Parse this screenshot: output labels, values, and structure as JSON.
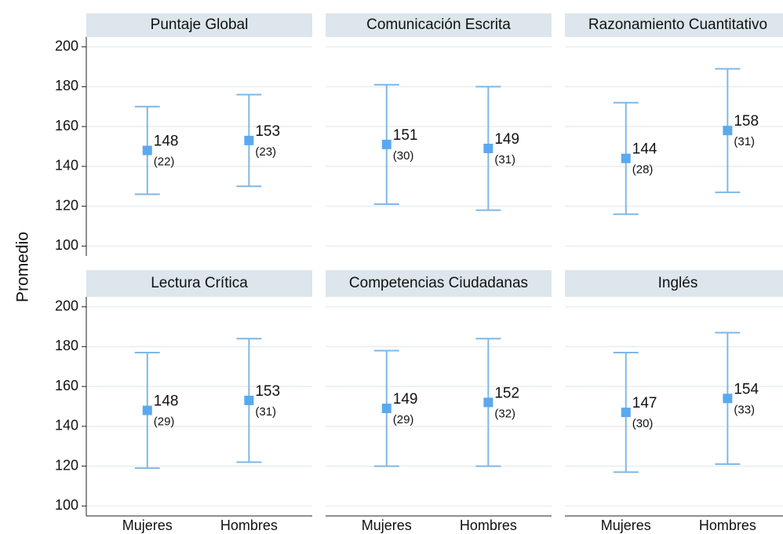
{
  "ylabel": "Promedio",
  "chart_data": [
    {
      "type": "errorbar",
      "title": "Puntaje Global",
      "categories": [
        "Mujeres",
        "Hombres"
      ],
      "values": [
        148,
        153
      ],
      "errors": [
        22,
        23
      ],
      "error_labels": [
        "(22)",
        "(23)"
      ],
      "ylim": [
        95,
        205
      ],
      "yticks": [
        100,
        120,
        140,
        160,
        180,
        200
      ],
      "grid": true,
      "color": "#5aa9f0",
      "bar_color": "#7fb8e6"
    },
    {
      "type": "errorbar",
      "title": "Comunicación Escrita",
      "categories": [
        "Mujeres",
        "Hombres"
      ],
      "values": [
        151,
        149
      ],
      "errors": [
        30,
        31
      ],
      "error_labels": [
        "(30)",
        "(31)"
      ],
      "ylim": [
        95,
        205
      ],
      "yticks": [
        100,
        120,
        140,
        160,
        180,
        200
      ],
      "grid": true,
      "color": "#5aa9f0",
      "bar_color": "#7fb8e6"
    },
    {
      "type": "errorbar",
      "title": "Razonamiento Cuantitativo",
      "categories": [
        "Mujeres",
        "Hombres"
      ],
      "values": [
        144,
        158
      ],
      "errors": [
        28,
        31
      ],
      "error_labels": [
        "(28)",
        "(31)"
      ],
      "ylim": [
        95,
        205
      ],
      "yticks": [
        100,
        120,
        140,
        160,
        180,
        200
      ],
      "grid": true,
      "color": "#5aa9f0",
      "bar_color": "#7fb8e6"
    },
    {
      "type": "errorbar",
      "title": "Lectura Crítica",
      "categories": [
        "Mujeres",
        "Hombres"
      ],
      "values": [
        148,
        153
      ],
      "errors": [
        29,
        31
      ],
      "error_labels": [
        "(29)",
        "(31)"
      ],
      "ylim": [
        95,
        205
      ],
      "yticks": [
        100,
        120,
        140,
        160,
        180,
        200
      ],
      "grid": true,
      "color": "#5aa9f0",
      "bar_color": "#7fb8e6"
    },
    {
      "type": "errorbar",
      "title": "Competencias Ciudadanas",
      "categories": [
        "Mujeres",
        "Hombres"
      ],
      "values": [
        149,
        152
      ],
      "errors": [
        29,
        32
      ],
      "error_labels": [
        "(29)",
        "(32)"
      ],
      "ylim": [
        95,
        205
      ],
      "yticks": [
        100,
        120,
        140,
        160,
        180,
        200
      ],
      "grid": true,
      "color": "#5aa9f0",
      "bar_color": "#7fb8e6"
    },
    {
      "type": "errorbar",
      "title": "Inglés",
      "categories": [
        "Mujeres",
        "Hombres"
      ],
      "values": [
        147,
        154
      ],
      "errors": [
        30,
        33
      ],
      "error_labels": [
        "(30)",
        "(33)"
      ],
      "ylim": [
        95,
        205
      ],
      "yticks": [
        100,
        120,
        140,
        160,
        180,
        200
      ],
      "grid": true,
      "color": "#5aa9f0",
      "bar_color": "#7fb8e6"
    }
  ]
}
